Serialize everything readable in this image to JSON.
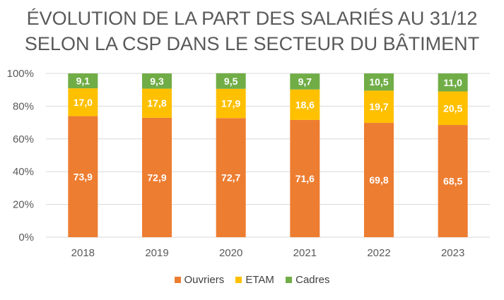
{
  "chart_data": {
    "type": "bar",
    "stacked": true,
    "title_lines": [
      "ÉVOLUTION DE LA PART DES SALARIÉS AU 31/12",
      "SELON LA CSP DANS LE SECTEUR DU BÂTIMENT"
    ],
    "categories": [
      "2018",
      "2019",
      "2020",
      "2021",
      "2022",
      "2023"
    ],
    "series": [
      {
        "name": "Ouvriers",
        "color": "#ED7D31",
        "values": [
          73.9,
          72.9,
          72.7,
          71.6,
          69.8,
          68.5
        ],
        "labels": [
          "73,9",
          "72,9",
          "72,7",
          "71,6",
          "69,8",
          "68,5"
        ]
      },
      {
        "name": "ETAM",
        "color": "#FFC000",
        "values": [
          17.0,
          17.8,
          17.9,
          18.6,
          19.7,
          20.5
        ],
        "labels": [
          "17,0",
          "17,8",
          "17,9",
          "18,6",
          "19,7",
          "20,5"
        ]
      },
      {
        "name": "Cadres",
        "color": "#70AD47",
        "values": [
          9.1,
          9.3,
          9.5,
          9.7,
          10.5,
          11.0
        ],
        "labels": [
          "9,1",
          "9,3",
          "9,5",
          "9,7",
          "10,5",
          "11,0"
        ]
      }
    ],
    "y_ticks": [
      "0%",
      "20%",
      "40%",
      "60%",
      "80%",
      "100%"
    ],
    "ylim": [
      0,
      100
    ],
    "grid": true,
    "legend_position": "bottom",
    "label_color": "#ffffff"
  }
}
